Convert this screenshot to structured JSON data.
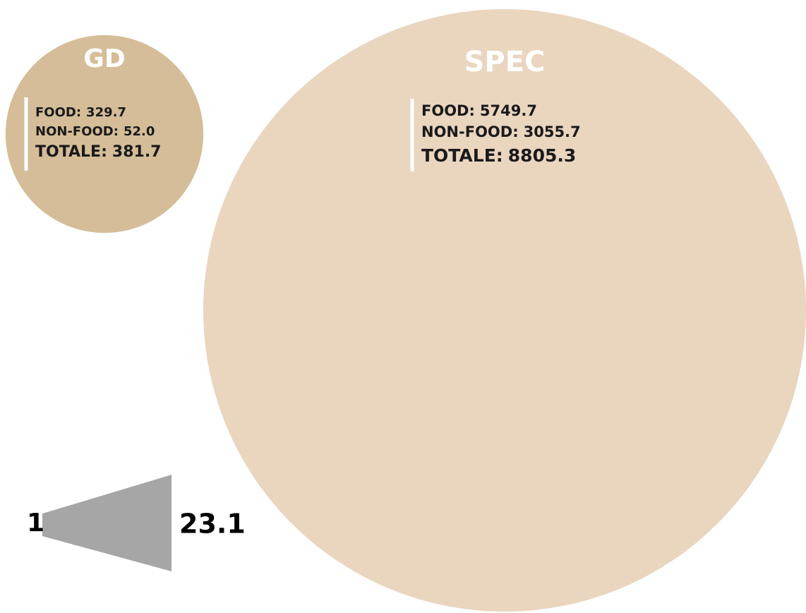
{
  "chart_data": {
    "type": "bubble",
    "categories": [
      "GD",
      "SPEC"
    ],
    "series": [
      {
        "name": "FOOD:",
        "values": [
          329.7,
          5749.7
        ]
      },
      {
        "name": "NON-FOOD:",
        "values": [
          52.0,
          3055.7
        ],
        "value_labels": [
          "52.0",
          "3055.7"
        ]
      },
      {
        "name": "TOTALE:",
        "values": [
          381.7,
          8805.3
        ]
      }
    ],
    "colors": [
      "#d4bd98",
      "#ead5bf"
    ],
    "ratio": {
      "from": 1,
      "to": 23.1,
      "color": "#a6a6a6"
    }
  }
}
